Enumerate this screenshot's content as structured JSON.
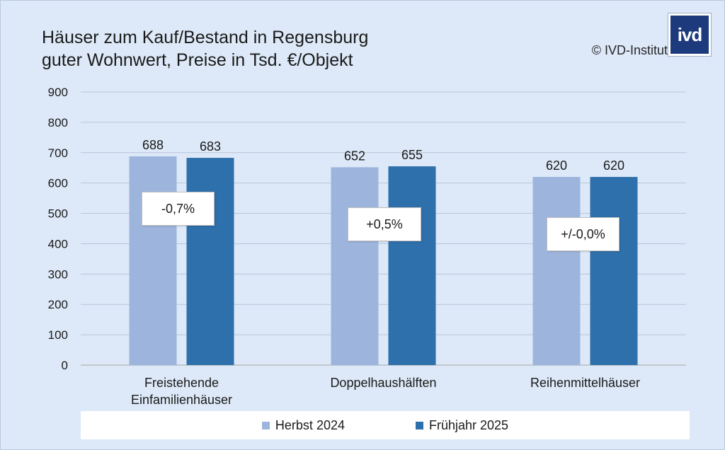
{
  "title_line1": "Häuser zum Kauf/Bestand in Regensburg",
  "title_line2": "guter Wohnwert, Preise in Tsd. €/Objekt",
  "copyright": "© IVD-Institut",
  "logo_text": "ivd",
  "chart_data": {
    "type": "bar",
    "categories": [
      [
        "Freistehende",
        "Einfamilienhäuser"
      ],
      [
        "Doppelhaushälften"
      ],
      [
        "Reihenmittelhäuser"
      ]
    ],
    "series": [
      {
        "name": "Herbst 2024",
        "values": [
          688,
          652,
          620
        ],
        "color": "#9db5dc"
      },
      {
        "name": "Frühjahr 2025",
        "values": [
          683,
          655,
          620
        ],
        "color": "#2e70ab"
      }
    ],
    "changes": [
      "-0,7%",
      "+0,5%",
      "+/-0,0%"
    ],
    "ylim": [
      0,
      900
    ],
    "yticks": [
      "0",
      "100",
      "200",
      "300",
      "400",
      "500",
      "600",
      "700",
      "800",
      "900"
    ],
    "grid": true,
    "legend_position": "bottom"
  }
}
